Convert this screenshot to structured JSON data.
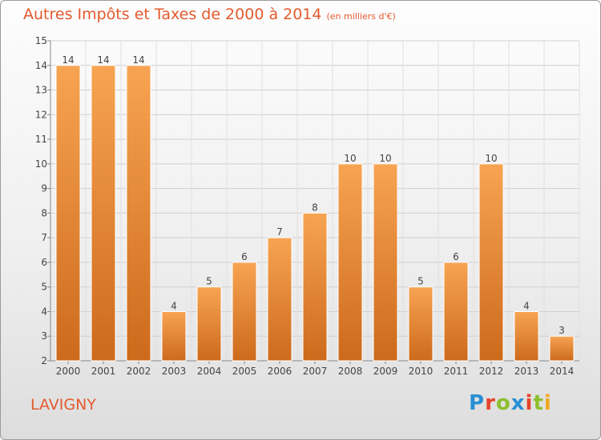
{
  "header": {
    "title": "Autres Impôts et Taxes de 2000 à 2014",
    "unit_note": "(en milliers d'€)"
  },
  "footer": {
    "location": "LAVIGNY",
    "brand": "Proxiti",
    "brand_colors": [
      "#2a8fd4",
      "#e7442b",
      "#8dbf2e",
      "#2a8fd4",
      "#e7442b",
      "#8dbf2e",
      "#f0a81f"
    ]
  },
  "colors": {
    "title": "#e35a2e",
    "bar_top": "#f7a452",
    "bar_bottom": "#cd6a1c"
  },
  "chart_data": {
    "type": "bar",
    "title": "Autres Impôts et Taxes de 2000 à 2014",
    "subtitle": "(en milliers d'€)",
    "xlabel": "",
    "ylabel": "",
    "categories": [
      "2000",
      "2001",
      "2002",
      "2003",
      "2004",
      "2005",
      "2006",
      "2007",
      "2008",
      "2009",
      "2010",
      "2011",
      "2012",
      "2013",
      "2014"
    ],
    "values": [
      14,
      14,
      14,
      4,
      5,
      6,
      7,
      8,
      10,
      10,
      5,
      6,
      10,
      4,
      3
    ],
    "ylim": [
      2,
      15
    ],
    "yticks": [
      2,
      3,
      4,
      5,
      6,
      7,
      8,
      9,
      10,
      11,
      12,
      13,
      14,
      15
    ],
    "grid": true,
    "data_labels": true,
    "legend": "none"
  }
}
